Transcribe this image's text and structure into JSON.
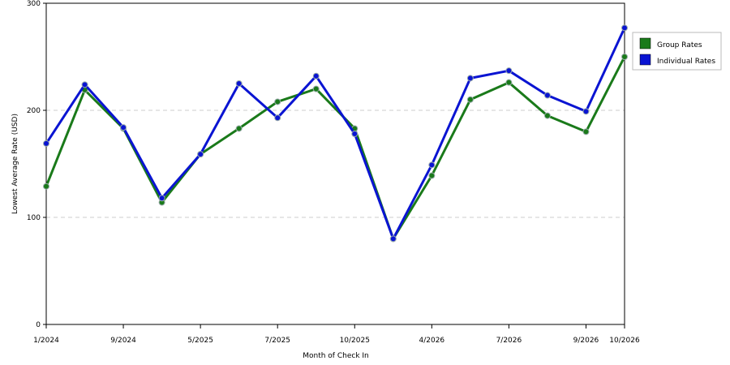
{
  "chart_data": {
    "type": "line",
    "title": "",
    "xlabel": "Month of Check In",
    "ylabel": "Lowest Average Rate (USD)",
    "ylim": [
      0,
      300
    ],
    "y_ticks": [
      "0",
      "100",
      "200",
      "300"
    ],
    "x_tick_labels": [
      "1/2024",
      "9/2024",
      "5/2025",
      "7/2025",
      "10/2025",
      "4/2026",
      "7/2026",
      "9/2026",
      "10/2026"
    ],
    "x_tick_index": [
      0,
      2,
      4,
      6,
      8,
      10,
      12,
      14,
      15
    ],
    "grid": "horizontal dashed at 100 and 200",
    "legend_position": "right",
    "series": [
      {
        "name": "Group Rates",
        "color": "#1a7a1a",
        "values": [
          129,
          219,
          183,
          114,
          159,
          183,
          208,
          220,
          183,
          80,
          139,
          210,
          226,
          195,
          180,
          250
        ]
      },
      {
        "name": "Individual Rates",
        "color": "#0a14d2",
        "values": [
          169,
          224,
          184,
          118,
          159,
          225,
          193,
          232,
          178,
          80,
          149,
          230,
          237,
          214,
          199,
          277
        ]
      }
    ]
  }
}
